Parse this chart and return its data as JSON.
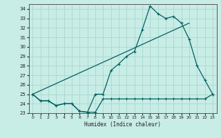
{
  "xlabel": "Humidex (Indice chaleur)",
  "x_ticks": [
    0,
    1,
    2,
    3,
    4,
    5,
    6,
    7,
    8,
    9,
    10,
    11,
    12,
    13,
    14,
    15,
    16,
    17,
    18,
    19,
    20,
    21,
    22,
    23
  ],
  "xlim": [
    -0.5,
    23.5
  ],
  "ylim": [
    23,
    34.5
  ],
  "y_ticks": [
    23,
    24,
    25,
    26,
    27,
    28,
    29,
    30,
    31,
    32,
    33,
    34
  ],
  "bg_color": "#c8ece6",
  "grid_color": "#a8d8cc",
  "line_color": "#006060",
  "line1_x": [
    0,
    1,
    2,
    3,
    4,
    5,
    6,
    7,
    8,
    9,
    10,
    11,
    12,
    13,
    14,
    15,
    16,
    17,
    18,
    19,
    20,
    21,
    22,
    23
  ],
  "line1_y": [
    25.0,
    24.3,
    24.3,
    23.8,
    24.0,
    24.0,
    23.2,
    23.1,
    23.1,
    24.5,
    24.5,
    24.5,
    24.5,
    24.5,
    24.5,
    24.5,
    24.5,
    24.5,
    24.5,
    24.5,
    24.5,
    24.5,
    24.5,
    25.0
  ],
  "line2_x": [
    0,
    1,
    2,
    3,
    4,
    5,
    6,
    7,
    8,
    9,
    10,
    11,
    12,
    13,
    14,
    15,
    16,
    17,
    18,
    19,
    20,
    21,
    22,
    23
  ],
  "line2_y": [
    25.0,
    24.3,
    24.3,
    23.8,
    24.0,
    24.0,
    23.2,
    23.1,
    25.0,
    25.0,
    27.5,
    28.2,
    29.0,
    29.5,
    31.8,
    34.3,
    33.5,
    33.0,
    33.2,
    32.5,
    30.8,
    28.0,
    26.5,
    25.0
  ],
  "line3_x": [
    0,
    20
  ],
  "line3_y": [
    25.0,
    32.5
  ]
}
